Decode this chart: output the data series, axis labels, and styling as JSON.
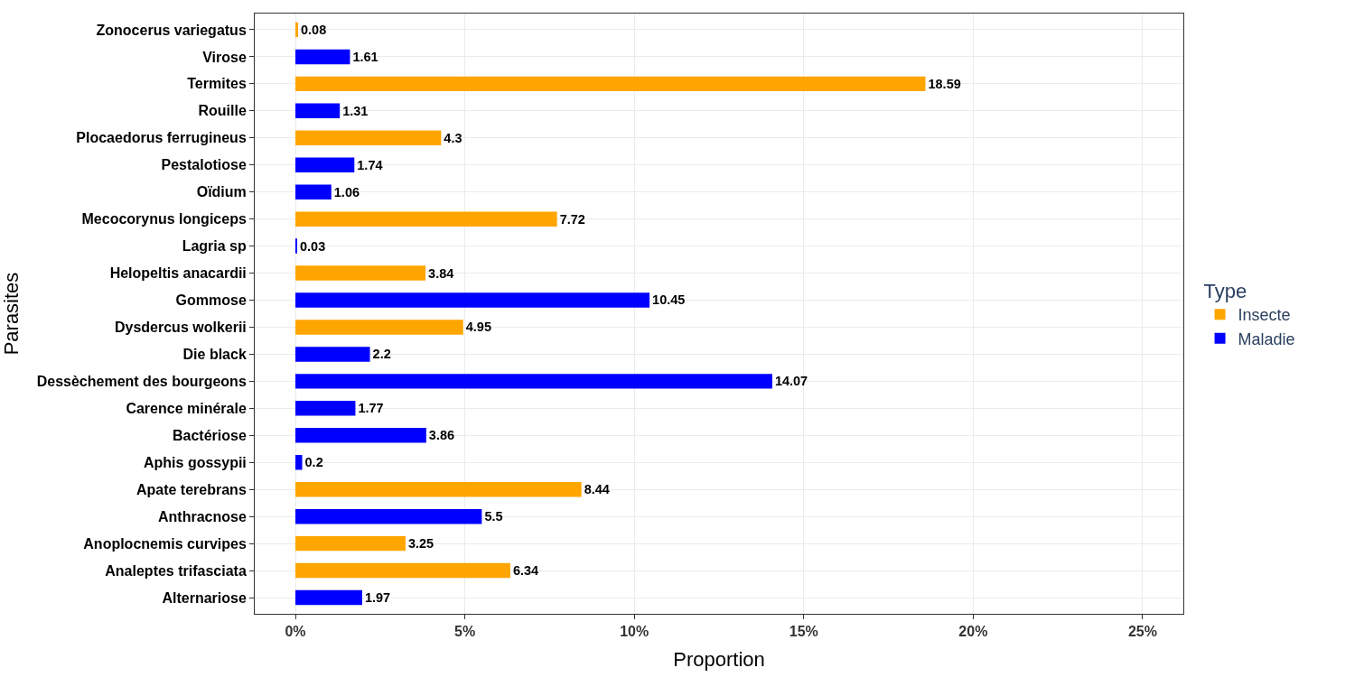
{
  "chart_data": {
    "type": "bar",
    "orientation": "horizontal",
    "xlabel": "Proportion",
    "ylabel": "Parasites",
    "legend_title": "Type",
    "categories": [
      "Zonocerus variegatus",
      "Virose",
      "Termites",
      "Rouille",
      "Plocaedorus ferrugineus",
      "Pestalotiose",
      "Oïdium",
      "Mecocorynus longiceps",
      "Lagria sp",
      "Helopeltis anacardii",
      "Gommose",
      "Dysdercus wolkerii",
      "Die black",
      "Dessèchement des bourgeons",
      "Carence minérale",
      "Bactériose",
      "Aphis gossypii",
      "Apate terebrans",
      "Anthracnose",
      "Anoplocnemis curvipes",
      "Analeptes trifasciata",
      "Alternariose"
    ],
    "series": [
      {
        "name": "Insecte",
        "color": "#ffa500",
        "values": [
          0.08,
          null,
          18.59,
          null,
          4.3,
          null,
          null,
          7.72,
          null,
          3.84,
          null,
          4.95,
          null,
          null,
          null,
          null,
          null,
          8.44,
          null,
          3.25,
          6.34,
          null
        ]
      },
      {
        "name": "Maladie",
        "color": "#0000ff",
        "values": [
          null,
          1.61,
          null,
          1.31,
          null,
          1.74,
          1.06,
          null,
          0.03,
          null,
          10.45,
          null,
          2.2,
          14.07,
          1.77,
          3.86,
          0.2,
          null,
          5.5,
          null,
          null,
          1.97
        ]
      }
    ],
    "xlim": [
      -1.2,
      26.2
    ],
    "xticks": [
      {
        "value": 0,
        "label": "0%"
      },
      {
        "value": 5,
        "label": "5%"
      },
      {
        "value": 10,
        "label": "10%"
      },
      {
        "value": 15,
        "label": "15%"
      },
      {
        "value": 20,
        "label": "20%"
      },
      {
        "value": 25,
        "label": "25%"
      }
    ],
    "data_labels": true,
    "grid": true,
    "legend": "right"
  }
}
